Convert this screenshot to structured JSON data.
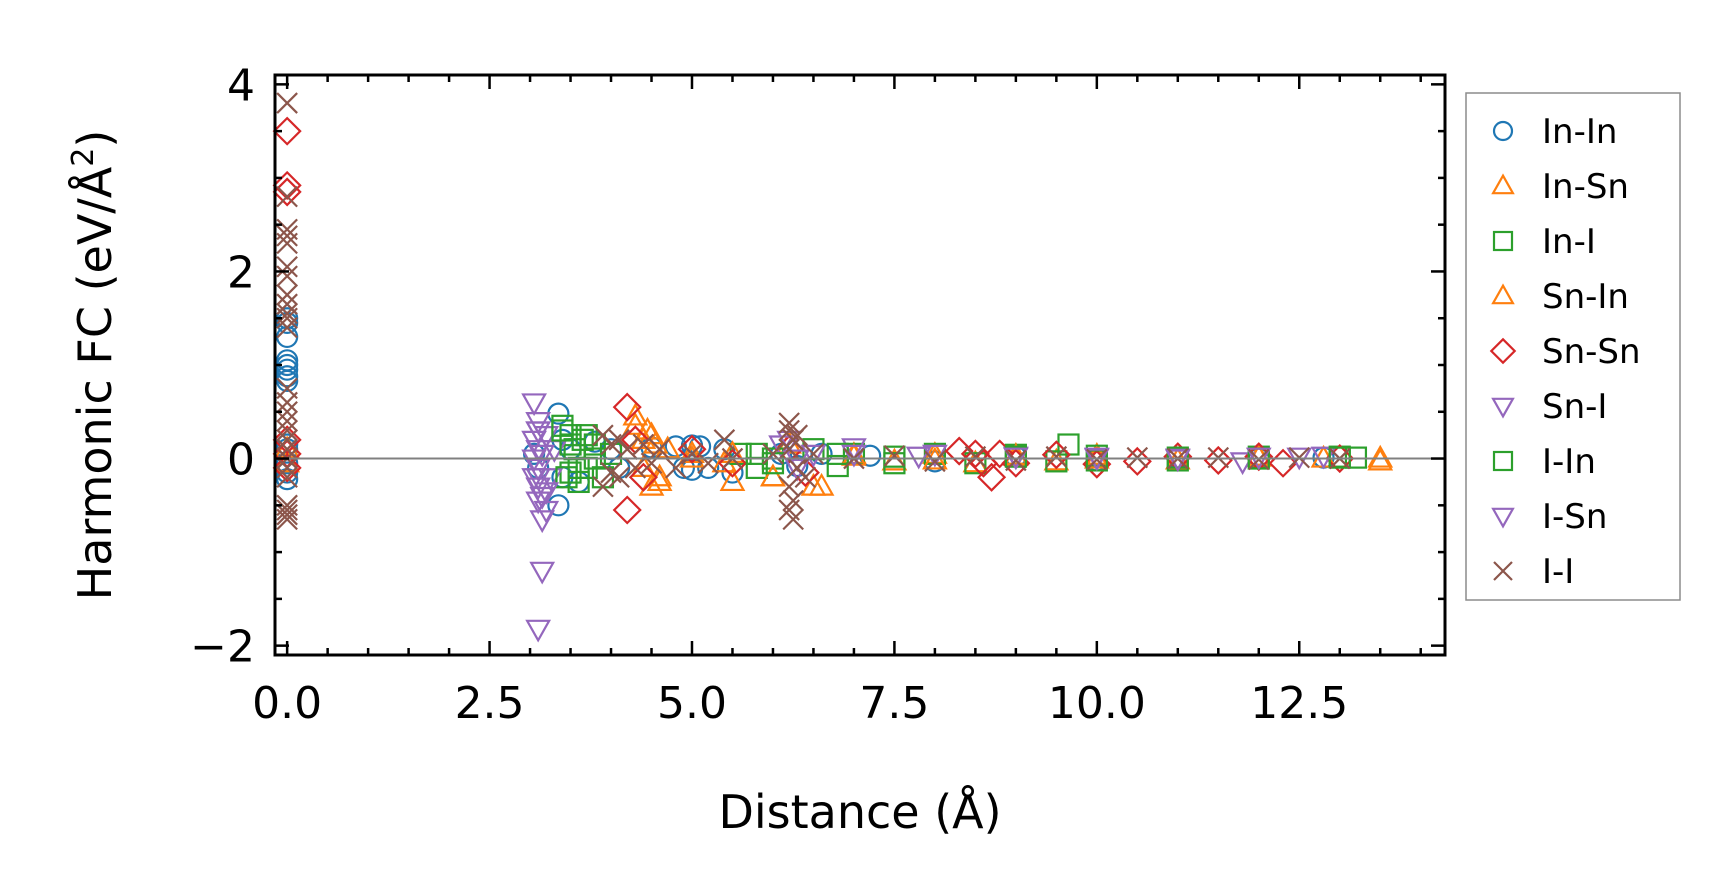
{
  "chart_data": {
    "type": "scatter",
    "title": "",
    "xlabel": "Distance (Å)",
    "ylabel_main": "Harmonic FC (eV/Å",
    "ylabel_sup": "2",
    "ylabel_close": ")",
    "xlim": [
      -0.15,
      14.3
    ],
    "ylim": [
      -2.1,
      4.1
    ],
    "x_ticks": [
      0.0,
      2.5,
      5.0,
      7.5,
      10.0,
      12.5
    ],
    "x_tick_labels": [
      "0.0",
      "2.5",
      "5.0",
      "7.5",
      "10.0",
      "12.5"
    ],
    "y_ticks": [
      -2,
      0,
      2,
      4
    ],
    "y_tick_labels": [
      "−2",
      "0",
      "2",
      "4"
    ],
    "grid": false,
    "legend_position": "right-outside-top",
    "zero_line": true,
    "series": [
      {
        "name": "In-In",
        "marker": "circle",
        "color": "#1f77b4",
        "points": [
          [
            0,
            1.5
          ],
          [
            0,
            1.45
          ],
          [
            0,
            1.3
          ],
          [
            0,
            1.05
          ],
          [
            0,
            1.0
          ],
          [
            0,
            0.95
          ],
          [
            0,
            0.88
          ],
          [
            0,
            0.83
          ],
          [
            0,
            0.15
          ],
          [
            0,
            0.1
          ],
          [
            0,
            -0.05
          ],
          [
            0,
            -0.15
          ],
          [
            0,
            -0.22
          ],
          [
            3.05,
            0.05
          ],
          [
            3.1,
            -0.1
          ],
          [
            3.35,
            0.48
          ],
          [
            3.35,
            -0.5
          ],
          [
            3.4,
            0.2
          ],
          [
            3.4,
            -0.2
          ],
          [
            3.5,
            0.1
          ],
          [
            3.6,
            -0.25
          ],
          [
            3.8,
            0.18
          ],
          [
            4.0,
            0.1
          ],
          [
            4.1,
            -0.1
          ],
          [
            4.5,
            0.12
          ],
          [
            4.8,
            0.13
          ],
          [
            4.9,
            -0.1
          ],
          [
            5.0,
            0.14
          ],
          [
            5.0,
            -0.12
          ],
          [
            5.1,
            0.13
          ],
          [
            5.2,
            -0.1
          ],
          [
            5.4,
            0.1
          ],
          [
            5.5,
            -0.15
          ],
          [
            6.1,
            0.05
          ],
          [
            6.3,
            -0.08
          ],
          [
            6.6,
            0.05
          ],
          [
            7.2,
            0.03
          ],
          [
            8.0,
            -0.03
          ],
          [
            9.0,
            0.02
          ],
          [
            10.0,
            -0.02
          ],
          [
            11.0,
            0.01
          ],
          [
            12.0,
            0.0
          ],
          [
            12.8,
            0.01
          ]
        ]
      },
      {
        "name": "In-Sn",
        "marker": "triangle-up",
        "color": "#ff7f0e",
        "points": [
          [
            0,
            0.1
          ],
          [
            0,
            -0.05
          ],
          [
            4.3,
            0.45
          ],
          [
            4.4,
            0.2
          ],
          [
            4.45,
            0.3
          ],
          [
            4.5,
            -0.3
          ],
          [
            4.55,
            0.15
          ],
          [
            4.6,
            -0.2
          ],
          [
            4.7,
            0.1
          ],
          [
            5.0,
            0.05
          ],
          [
            5.4,
            -0.05
          ],
          [
            5.5,
            -0.25
          ],
          [
            6.0,
            -0.2
          ],
          [
            6.2,
            0.15
          ],
          [
            6.5,
            -0.3
          ],
          [
            7.0,
            0.04
          ],
          [
            7.5,
            -0.03
          ],
          [
            8.0,
            0.04
          ],
          [
            8.5,
            -0.05
          ],
          [
            9.0,
            0.03
          ],
          [
            9.5,
            -0.03
          ],
          [
            10.0,
            0.03
          ],
          [
            11.0,
            -0.02
          ],
          [
            12.0,
            0.02
          ],
          [
            12.8,
            0.0
          ],
          [
            13.5,
            -0.03
          ]
        ]
      },
      {
        "name": "In-I",
        "marker": "square",
        "color": "#2ca02c",
        "points": [
          [
            3.4,
            0.35
          ],
          [
            3.5,
            0.25
          ],
          [
            3.5,
            -0.15
          ],
          [
            3.55,
            0.1
          ],
          [
            3.6,
            -0.25
          ],
          [
            3.65,
            0.2
          ],
          [
            3.7,
            -0.1
          ],
          [
            3.8,
            0.15
          ],
          [
            3.9,
            -0.2
          ],
          [
            4.0,
            0.05
          ],
          [
            5.6,
            0.05
          ],
          [
            5.8,
            -0.1
          ],
          [
            6.0,
            0.0
          ],
          [
            6.5,
            0.1
          ],
          [
            6.8,
            -0.08
          ],
          [
            7.0,
            0.05
          ],
          [
            7.5,
            -0.05
          ],
          [
            8.0,
            0.05
          ],
          [
            8.5,
            -0.05
          ],
          [
            9.0,
            0.04
          ],
          [
            9.5,
            -0.03
          ],
          [
            9.65,
            0.15
          ],
          [
            10.0,
            0.03
          ],
          [
            11.0,
            -0.02
          ],
          [
            12.0,
            0.02
          ],
          [
            13.0,
            0.02
          ],
          [
            13.2,
            0.01
          ]
        ]
      },
      {
        "name": "Sn-In",
        "marker": "triangle-up",
        "color": "#ff7f0e",
        "points": [
          [
            4.3,
            0.35
          ],
          [
            4.4,
            -0.1
          ],
          [
            4.5,
            0.25
          ],
          [
            4.6,
            -0.25
          ],
          [
            5.0,
            0.0
          ],
          [
            5.5,
            0.05
          ],
          [
            6.0,
            -0.2
          ],
          [
            6.6,
            -0.3
          ],
          [
            7.0,
            0.02
          ],
          [
            8.0,
            -0.02
          ],
          [
            9.0,
            0.02
          ],
          [
            10.0,
            -0.01
          ],
          [
            12.0,
            0.01
          ],
          [
            13.5,
            0.0
          ]
        ]
      },
      {
        "name": "Sn-Sn",
        "marker": "diamond",
        "color": "#d62728",
        "points": [
          [
            0,
            3.5
          ],
          [
            0,
            2.92
          ],
          [
            0,
            2.85
          ],
          [
            0,
            0.2
          ],
          [
            0,
            0.05
          ],
          [
            0,
            -0.1
          ],
          [
            4.2,
            0.55
          ],
          [
            4.2,
            -0.55
          ],
          [
            4.3,
            0.2
          ],
          [
            4.4,
            -0.2
          ],
          [
            5.0,
            0.1
          ],
          [
            5.5,
            -0.05
          ],
          [
            6.2,
            0.1
          ],
          [
            6.4,
            -0.15
          ],
          [
            8.3,
            0.08
          ],
          [
            8.5,
            0.05
          ],
          [
            8.6,
            -0.05
          ],
          [
            8.7,
            -0.2
          ],
          [
            8.8,
            0.05
          ],
          [
            9.0,
            -0.05
          ],
          [
            9.5,
            0.04
          ],
          [
            10.0,
            -0.06
          ],
          [
            10.5,
            -0.03
          ],
          [
            11.0,
            0.02
          ],
          [
            11.5,
            -0.02
          ],
          [
            12.0,
            0.02
          ],
          [
            12.3,
            -0.05
          ],
          [
            13.0,
            0.0
          ]
        ]
      },
      {
        "name": "Sn-I",
        "marker": "triangle-down",
        "color": "#9467bd",
        "points": [
          [
            3.05,
            0.6
          ],
          [
            3.1,
            0.4
          ],
          [
            3.1,
            0.3
          ],
          [
            3.05,
            0.2
          ],
          [
            3.1,
            0.1
          ],
          [
            3.05,
            0.0
          ],
          [
            3.1,
            -0.1
          ],
          [
            3.05,
            -0.2
          ],
          [
            3.1,
            -0.3
          ],
          [
            3.15,
            -0.4
          ],
          [
            3.1,
            -0.45
          ],
          [
            3.2,
            -0.55
          ],
          [
            3.15,
            -0.65
          ],
          [
            3.15,
            -1.2
          ],
          [
            3.1,
            -1.82
          ],
          [
            3.2,
            0.25
          ],
          [
            3.25,
            -0.2
          ],
          [
            3.3,
            0.1
          ],
          [
            6.1,
            0.15
          ],
          [
            6.3,
            -0.1
          ],
          [
            6.5,
            0.05
          ],
          [
            7.0,
            0.12
          ],
          [
            8.0,
            0.05
          ],
          [
            9.0,
            0.03
          ],
          [
            10.0,
            0.02
          ],
          [
            11.0,
            0.01
          ],
          [
            11.8,
            -0.03
          ],
          [
            12.5,
            0.02
          ],
          [
            12.8,
            0.03
          ]
        ]
      },
      {
        "name": "I-In",
        "marker": "square",
        "color": "#2ca02c",
        "points": [
          [
            3.4,
            0.3
          ],
          [
            3.45,
            -0.2
          ],
          [
            3.5,
            0.15
          ],
          [
            3.6,
            -0.1
          ],
          [
            3.7,
            0.25
          ],
          [
            3.8,
            0.0
          ],
          [
            5.8,
            0.05
          ],
          [
            6.0,
            -0.05
          ],
          [
            6.8,
            0.05
          ],
          [
            7.5,
            0.02
          ],
          [
            9.0,
            0.02
          ],
          [
            10.0,
            -0.02
          ],
          [
            11.0,
            0.01
          ],
          [
            12.0,
            0.0
          ],
          [
            13.0,
            0.01
          ]
        ]
      },
      {
        "name": "I-Sn",
        "marker": "triangle-down",
        "color": "#9467bd",
        "points": [
          [
            3.1,
            0.3
          ],
          [
            3.15,
            0.05
          ],
          [
            3.1,
            -0.2
          ],
          [
            3.2,
            -0.35
          ],
          [
            6.2,
            0.2
          ],
          [
            6.3,
            0.0
          ],
          [
            7.0,
            0.05
          ],
          [
            7.8,
            0.03
          ],
          [
            9.0,
            0.02
          ],
          [
            10.0,
            0.01
          ],
          [
            11.0,
            0.0
          ],
          [
            12.0,
            0.02
          ]
        ]
      },
      {
        "name": "I-I",
        "marker": "x",
        "color": "#8c564b",
        "points": [
          [
            0,
            3.8
          ],
          [
            0,
            2.8
          ],
          [
            0,
            2.45
          ],
          [
            0,
            2.38
          ],
          [
            0,
            2.3
          ],
          [
            0,
            2.05
          ],
          [
            0,
            1.95
          ],
          [
            0,
            1.75
          ],
          [
            0,
            1.65
          ],
          [
            0,
            1.55
          ],
          [
            0,
            1.5
          ],
          [
            0,
            1.4
          ],
          [
            0,
            0.75
          ],
          [
            0,
            0.6
          ],
          [
            0,
            0.5
          ],
          [
            0,
            0.4
          ],
          [
            0,
            0.3
          ],
          [
            0,
            0.2
          ],
          [
            0,
            0.1
          ],
          [
            0,
            0.0
          ],
          [
            0,
            -0.1
          ],
          [
            0,
            -0.2
          ],
          [
            0,
            -0.5
          ],
          [
            0,
            -0.55
          ],
          [
            0,
            -0.6
          ],
          [
            0,
            -0.65
          ],
          [
            3.9,
            0.25
          ],
          [
            3.9,
            -0.3
          ],
          [
            4.0,
            0.15
          ],
          [
            4.0,
            -0.15
          ],
          [
            4.1,
            0.2
          ],
          [
            4.1,
            -0.2
          ],
          [
            4.2,
            0.1
          ],
          [
            4.3,
            -0.1
          ],
          [
            4.4,
            0.15
          ],
          [
            4.5,
            -0.05
          ],
          [
            4.6,
            0.1
          ],
          [
            4.8,
            -0.1
          ],
          [
            5.0,
            0.05
          ],
          [
            5.2,
            -0.05
          ],
          [
            5.4,
            0.2
          ],
          [
            5.5,
            0.0
          ],
          [
            6.0,
            0.05
          ],
          [
            6.2,
            0.38
          ],
          [
            6.2,
            0.3
          ],
          [
            6.25,
            0.2
          ],
          [
            6.2,
            0.1
          ],
          [
            6.3,
            -0.1
          ],
          [
            6.2,
            -0.3
          ],
          [
            6.25,
            -0.45
          ],
          [
            6.2,
            -0.55
          ],
          [
            6.25,
            -0.65
          ],
          [
            6.3,
            0.25
          ],
          [
            6.4,
            -0.2
          ],
          [
            6.5,
            0.05
          ],
          [
            7.0,
            0.0
          ],
          [
            7.5,
            0.03
          ],
          [
            8.0,
            -0.03
          ],
          [
            8.5,
            0.02
          ],
          [
            9.0,
            -0.02
          ],
          [
            9.5,
            0.02
          ],
          [
            10.0,
            -0.01
          ],
          [
            10.5,
            0.01
          ],
          [
            11.0,
            0.0
          ],
          [
            11.5,
            0.01
          ],
          [
            12.0,
            -0.01
          ],
          [
            12.5,
            0.01
          ],
          [
            13.0,
            0.0
          ]
        ]
      }
    ]
  }
}
